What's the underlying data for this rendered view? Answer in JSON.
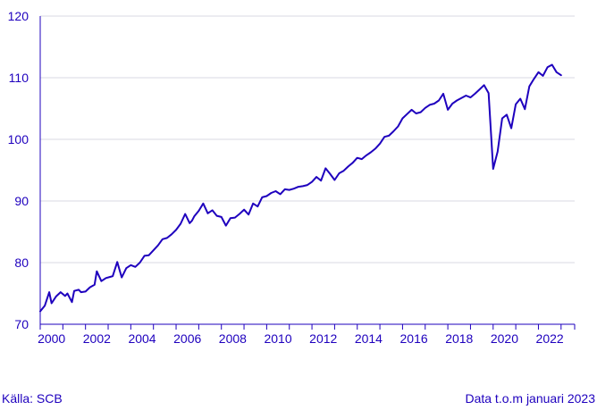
{
  "colors": {
    "line": "#1e00be",
    "text": "#1e00be",
    "grid": "#d9d9e3",
    "axis": "#1e00be"
  },
  "footer": {
    "source": "Källa: SCB",
    "note": "Data t.o.m januari 2023"
  },
  "chart_data": {
    "type": "line",
    "title": "",
    "xlabel": "",
    "ylabel": "",
    "xlim": [
      2000,
      2023.6
    ],
    "ylim": [
      70,
      120
    ],
    "yticks": [
      70,
      80,
      90,
      100,
      110,
      120
    ],
    "xticks": [
      "2000",
      "2002",
      "2004",
      "2006",
      "2008",
      "2010",
      "2012",
      "2014",
      "2016",
      "2018",
      "2020",
      "2022"
    ],
    "grid": "horizontal",
    "legend": "none",
    "series": [
      {
        "x": [
          2000.0,
          2000.2,
          2000.4,
          2000.5,
          2000.7,
          2000.9,
          2001.1,
          2001.2,
          2001.4,
          2001.5,
          2001.7,
          2001.8,
          2002.0,
          2002.2,
          2002.4,
          2002.5,
          2002.7,
          2002.9,
          2003.1,
          2003.2,
          2003.4,
          2003.6,
          2003.8,
          2004.0,
          2004.2,
          2004.4,
          2004.6,
          2004.8,
          2005.0,
          2005.2,
          2005.4,
          2005.6,
          2005.8,
          2006.0,
          2006.2,
          2006.4,
          2006.6,
          2006.7,
          2006.8,
          2007.0,
          2007.2,
          2007.4,
          2007.6,
          2007.8,
          2008.0,
          2008.2,
          2008.4,
          2008.6,
          2008.8,
          2009.0,
          2009.2,
          2009.4,
          2009.6,
          2009.8,
          2010.0,
          2010.2,
          2010.4,
          2010.6,
          2010.8,
          2011.0,
          2011.2,
          2011.4,
          2011.6,
          2011.8,
          2012.0,
          2012.2,
          2012.4,
          2012.6,
          2012.8,
          2013.0,
          2013.2,
          2013.4,
          2013.6,
          2013.8,
          2014.0,
          2014.2,
          2014.4,
          2014.6,
          2014.8,
          2015.0,
          2015.2,
          2015.4,
          2015.6,
          2015.8,
          2016.0,
          2016.2,
          2016.4,
          2016.6,
          2016.8,
          2017.0,
          2017.2,
          2017.4,
          2017.6,
          2017.8,
          2018.0,
          2018.2,
          2018.4,
          2018.6,
          2018.8,
          2019.0,
          2019.2,
          2019.4,
          2019.6,
          2019.8,
          2020.0,
          2020.2,
          2020.4,
          2020.6,
          2020.8,
          2021.0,
          2021.2,
          2021.4,
          2021.6,
          2021.8,
          2022.0,
          2022.2,
          2022.4,
          2022.6,
          2022.8,
          2023.0
        ],
        "values": [
          72.1,
          73.0,
          75.2,
          73.4,
          74.5,
          75.2,
          74.6,
          75.0,
          73.6,
          75.4,
          75.6,
          75.2,
          75.3,
          76.0,
          76.4,
          78.6,
          77.0,
          77.5,
          77.7,
          77.8,
          80.1,
          77.6,
          79.1,
          79.6,
          79.3,
          80.0,
          81.1,
          81.2,
          82.0,
          82.8,
          83.8,
          84.0,
          84.6,
          85.3,
          86.3,
          87.9,
          86.4,
          86.8,
          87.5,
          88.4,
          89.6,
          88.0,
          88.5,
          87.6,
          87.4,
          86.0,
          87.2,
          87.3,
          87.9,
          88.6,
          87.8,
          89.6,
          89.1,
          90.6,
          90.8,
          91.3,
          91.6,
          91.1,
          91.9,
          91.8,
          92.0,
          92.3,
          92.4,
          92.6,
          93.1,
          93.9,
          93.3,
          95.3,
          94.4,
          93.4,
          94.5,
          94.9,
          95.6,
          96.2,
          97.0,
          96.8,
          97.4,
          97.9,
          98.5,
          99.3,
          100.4,
          100.6,
          101.3,
          102.1,
          103.4,
          104.1,
          104.8,
          104.2,
          104.4,
          105.1,
          105.6,
          105.8,
          106.3,
          107.4,
          104.8,
          105.8,
          106.3,
          106.7,
          107.1,
          106.8,
          107.4,
          108.1,
          108.8,
          107.5,
          95.2,
          98.0,
          103.4,
          104.0,
          101.8,
          105.7,
          106.6,
          104.9,
          108.6,
          109.8,
          110.9,
          110.3,
          111.7,
          112.1,
          110.9,
          110.4
        ]
      }
    ]
  }
}
